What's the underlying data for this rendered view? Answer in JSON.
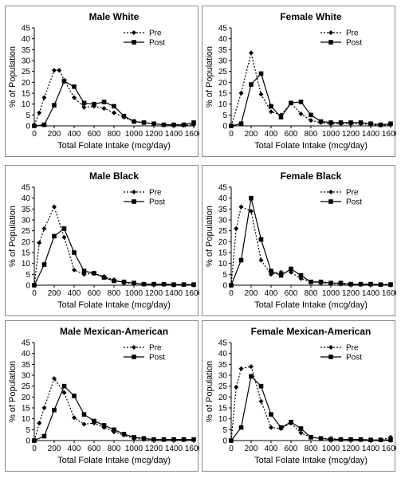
{
  "chart_data": [
    {
      "type": "line",
      "title": "Male White",
      "xlabel": "Total Folate Intake (mcg/day)",
      "ylabel": "% of Population",
      "xlim": [
        0,
        1600
      ],
      "ylim": [
        0,
        45
      ],
      "xticks": [
        "0",
        "200",
        "400",
        "600",
        "800",
        "1000",
        "1200",
        "1400",
        "1600"
      ],
      "yticks": [
        "0",
        "5",
        "10",
        "15",
        "20",
        "25",
        "30",
        "35",
        "40",
        "45"
      ],
      "legend": "top-right",
      "series": [
        {
          "name": "Pre",
          "marker": "diamond",
          "style": "dotted",
          "x": [
            0,
            50,
            100,
            200,
            250,
            300,
            400,
            500,
            600,
            700,
            800,
            900,
            1000,
            1100,
            1200,
            1300,
            1400,
            1500,
            1600
          ],
          "y": [
            0.5,
            6,
            13,
            25.5,
            25.5,
            21,
            13,
            8.5,
            9,
            8,
            6,
            4,
            2,
            1.5,
            1,
            0.5,
            0.5,
            0.3,
            0.5
          ]
        },
        {
          "name": "Post",
          "marker": "square",
          "style": "solid",
          "x": [
            0,
            100,
            200,
            300,
            400,
            500,
            600,
            700,
            800,
            900,
            1000,
            1100,
            1200,
            1300,
            1400,
            1500,
            1600
          ],
          "y": [
            0,
            0.5,
            9.5,
            20.5,
            18,
            10.5,
            10,
            11,
            9,
            4.5,
            2,
            1.5,
            1,
            0.5,
            0.5,
            0.5,
            1.5
          ]
        }
      ]
    },
    {
      "type": "line",
      "title": "Female White",
      "xlabel": "Total Folate Intake (mcg/day)",
      "ylabel": "% of Population",
      "xlim": [
        0,
        1600
      ],
      "ylim": [
        0,
        45
      ],
      "xticks": [
        "0",
        "200",
        "400",
        "600",
        "800",
        "1000",
        "1200",
        "1400",
        "1600"
      ],
      "yticks": [
        "0",
        "5",
        "10",
        "15",
        "20",
        "25",
        "30",
        "35",
        "40",
        "45"
      ],
      "legend": "top-right",
      "series": [
        {
          "name": "Pre",
          "marker": "diamond",
          "style": "dotted",
          "x": [
            0,
            100,
            200,
            300,
            400,
            500,
            600,
            700,
            800,
            900,
            1000,
            1100,
            1200,
            1300,
            1400,
            1500,
            1600
          ],
          "y": [
            0,
            15,
            33.5,
            14.5,
            6.5,
            5,
            10.5,
            5.5,
            2.5,
            1.5,
            1,
            1,
            1,
            1,
            0.5,
            0.3,
            0.5
          ]
        },
        {
          "name": "Post",
          "marker": "square",
          "style": "solid",
          "x": [
            0,
            100,
            200,
            300,
            400,
            500,
            600,
            700,
            800,
            900,
            1000,
            1100,
            1200,
            1300,
            1400,
            1500,
            1600
          ],
          "y": [
            0,
            1,
            19,
            24,
            9,
            4,
            10.5,
            11,
            5,
            2,
            1.5,
            1.5,
            1.5,
            1.5,
            1,
            0.5,
            1
          ]
        }
      ]
    },
    {
      "type": "line",
      "title": "Male Black",
      "xlabel": "Total Folate Intake (mcg/day)",
      "ylabel": "% of Population",
      "xlim": [
        0,
        1600
      ],
      "ylim": [
        0,
        45
      ],
      "xticks": [
        "0",
        "200",
        "400",
        "600",
        "800",
        "1000",
        "1200",
        "1400",
        "1600"
      ],
      "yticks": [
        "0",
        "5",
        "10",
        "15",
        "20",
        "25",
        "30",
        "35",
        "40",
        "45"
      ],
      "legend": "top-right",
      "series": [
        {
          "name": "Pre",
          "marker": "diamond",
          "style": "dotted",
          "x": [
            0,
            50,
            100,
            200,
            300,
            400,
            500,
            600,
            700,
            800,
            900,
            1000,
            1100,
            1200,
            1300,
            1400,
            1500,
            1600
          ],
          "y": [
            0,
            19.5,
            26,
            36,
            22,
            7,
            5,
            5.5,
            4,
            2.5,
            1,
            1,
            0.5,
            0.5,
            0.3,
            0.3,
            0.3,
            0.3
          ]
        },
        {
          "name": "Post",
          "marker": "square",
          "style": "solid",
          "x": [
            0,
            100,
            200,
            300,
            400,
            500,
            600,
            700,
            800,
            900,
            1000,
            1100,
            1200,
            1300,
            1400,
            1500,
            1600
          ],
          "y": [
            0,
            9.5,
            22.5,
            26,
            15,
            6.5,
            5.5,
            3.5,
            2,
            1.5,
            1,
            0.5,
            0.5,
            0.5,
            0.3,
            0.3,
            0.3
          ]
        }
      ]
    },
    {
      "type": "line",
      "title": "Female Black",
      "xlabel": "Total Folate Intake (mcg/day)",
      "ylabel": "% of Population",
      "xlim": [
        0,
        1600
      ],
      "ylim": [
        0,
        45
      ],
      "xticks": [
        "0",
        "200",
        "400",
        "600",
        "800",
        "1000",
        "1200",
        "1400",
        "1600"
      ],
      "yticks": [
        "0",
        "5",
        "10",
        "15",
        "20",
        "25",
        "30",
        "35",
        "40",
        "45"
      ],
      "legend": "top-right",
      "series": [
        {
          "name": "Pre",
          "marker": "diamond",
          "style": "dotted",
          "x": [
            0,
            50,
            100,
            200,
            300,
            400,
            500,
            600,
            700,
            800,
            900,
            1000,
            1100,
            1200,
            1300,
            1400,
            1500,
            1600
          ],
          "y": [
            0,
            26,
            36,
            34,
            11.5,
            5,
            6,
            6,
            3,
            1.5,
            1,
            1,
            0.5,
            0.5,
            0.3,
            0.3,
            0.3,
            0.5
          ]
        },
        {
          "name": "Post",
          "marker": "square",
          "style": "solid",
          "x": [
            0,
            100,
            200,
            300,
            400,
            500,
            600,
            700,
            800,
            900,
            1000,
            1100,
            1200,
            1300,
            1400,
            1500,
            1600
          ],
          "y": [
            0,
            11.5,
            40,
            21,
            6.5,
            4.5,
            7.5,
            4.5,
            1.5,
            1.5,
            1,
            1,
            0.5,
            0.5,
            0.5,
            0.3,
            0.3
          ]
        }
      ]
    },
    {
      "type": "line",
      "title": "Male Mexican-American",
      "xlabel": "Total Folate Intake (mcg/day)",
      "ylabel": "% of Population",
      "xlim": [
        0,
        1600
      ],
      "ylim": [
        0,
        45
      ],
      "xticks": [
        "0",
        "200",
        "400",
        "600",
        "800",
        "1000",
        "1200",
        "1400",
        "1600"
      ],
      "yticks": [
        "0",
        "5",
        "10",
        "15",
        "20",
        "25",
        "30",
        "35",
        "40",
        "45"
      ],
      "legend": "top-right",
      "series": [
        {
          "name": "Pre",
          "marker": "diamond",
          "style": "dotted",
          "x": [
            0,
            50,
            100,
            200,
            300,
            400,
            500,
            600,
            700,
            800,
            900,
            1000,
            1100,
            1200,
            1300,
            1400,
            1500,
            1600
          ],
          "y": [
            0,
            8,
            15,
            28.5,
            22,
            10.5,
            7.5,
            8,
            6,
            4,
            2.5,
            1,
            0.5,
            0.5,
            0.3,
            0.3,
            0.3,
            0.3
          ]
        },
        {
          "name": "Post",
          "marker": "square",
          "style": "solid",
          "x": [
            0,
            100,
            200,
            300,
            400,
            500,
            600,
            700,
            800,
            900,
            1000,
            1100,
            1200,
            1300,
            1400,
            1500,
            1600
          ],
          "y": [
            0,
            2,
            14,
            25,
            20.5,
            12,
            9,
            7,
            5,
            3,
            1.5,
            1,
            0.5,
            0.5,
            0.5,
            0.5,
            0.5
          ]
        }
      ]
    },
    {
      "type": "line",
      "title": "Female Mexican-American",
      "xlabel": "Total Folate Intake (mcg/day)",
      "ylabel": "% of Population",
      "xlim": [
        0,
        1600
      ],
      "ylim": [
        0,
        45
      ],
      "xticks": [
        "0",
        "200",
        "400",
        "600",
        "800",
        "1000",
        "1200",
        "1400",
        "1600"
      ],
      "yticks": [
        "0",
        "5",
        "10",
        "15",
        "20",
        "25",
        "30",
        "35",
        "40",
        "45"
      ],
      "legend": "top-right",
      "series": [
        {
          "name": "Pre",
          "marker": "diamond",
          "style": "dotted",
          "x": [
            0,
            50,
            100,
            200,
            300,
            400,
            500,
            600,
            700,
            800,
            900,
            1000,
            1100,
            1200,
            1300,
            1400,
            1500,
            1600
          ],
          "y": [
            0,
            24.5,
            33,
            34,
            18,
            6,
            5.5,
            8,
            3.5,
            1.5,
            1,
            1,
            0.5,
            0.5,
            0.3,
            0.3,
            0.3,
            1.5
          ]
        },
        {
          "name": "Post",
          "marker": "square",
          "style": "solid",
          "x": [
            0,
            100,
            200,
            300,
            400,
            500,
            600,
            700,
            800,
            900,
            1000,
            1100,
            1200,
            1300,
            1400,
            1500,
            1600
          ],
          "y": [
            0,
            6,
            29.5,
            25,
            12,
            6,
            8.5,
            5.5,
            1.5,
            1,
            0.5,
            0.5,
            0.5,
            0.5,
            0.3,
            0.3,
            0.3
          ]
        }
      ]
    }
  ]
}
